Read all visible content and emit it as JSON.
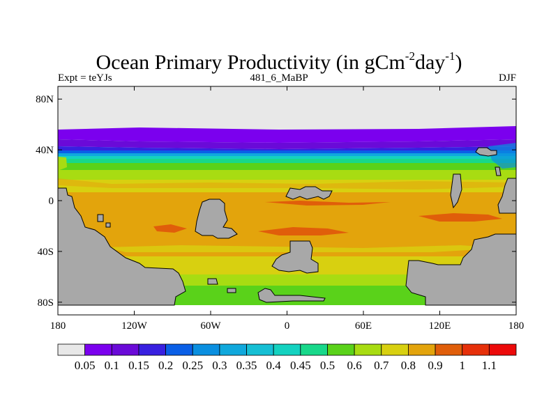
{
  "title": {
    "main": "Ocean Primary Productivity (in gCm",
    "exp1": "-2",
    "mid": "day",
    "exp2": "-1",
    "end": ")"
  },
  "subtitle_left": "Expt = teYJs",
  "subtitle_center": "481_6_MaBP",
  "subtitle_right": "DJF",
  "map": {
    "lon_range": [
      -180,
      180
    ],
    "lat_range": [
      -90,
      90
    ],
    "x_ticks": [
      {
        "value": -180,
        "label": "180"
      },
      {
        "value": -120,
        "label": "120W"
      },
      {
        "value": -60,
        "label": "60W"
      },
      {
        "value": 0,
        "label": "0"
      },
      {
        "value": 60,
        "label": "60E"
      },
      {
        "value": 120,
        "label": "120E"
      },
      {
        "value": 180,
        "label": "180"
      }
    ],
    "y_ticks": [
      {
        "value": 80,
        "label": "80N"
      },
      {
        "value": 40,
        "label": "40N"
      },
      {
        "value": 0,
        "label": "0"
      },
      {
        "value": -40,
        "label": "40S"
      },
      {
        "value": -80,
        "label": "80S"
      }
    ],
    "colors": {
      "land": "#a8a8a8",
      "missing": "#e8e8e8",
      "coast": "#000000"
    }
  },
  "colorbar": {
    "colors": [
      "#e8e8e8",
      "#7b00ee",
      "#6a0ad8",
      "#3820e0",
      "#0a5fe6",
      "#0a8fe0",
      "#10a8dc",
      "#16bfd4",
      "#14d2c0",
      "#18d88a",
      "#5ad21a",
      "#a8dc12",
      "#d8d010",
      "#e3a40c",
      "#e05e0a",
      "#e6300a",
      "#ec0a0a"
    ],
    "labels": [
      "0.05",
      "0.1",
      "0.15",
      "0.2",
      "0.25",
      "0.3",
      "0.35",
      "0.4",
      "0.45",
      "0.5",
      "0.6",
      "0.7",
      "0.8",
      "0.9",
      "1",
      "1.1"
    ]
  }
}
